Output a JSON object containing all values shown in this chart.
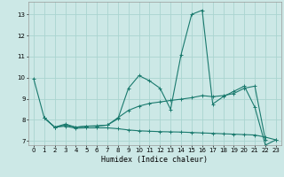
{
  "xlabel": "Humidex (Indice chaleur)",
  "bg_color": "#cce8e6",
  "line_color": "#1a7a6e",
  "grid_color": "#aad4d0",
  "xlim": [
    -0.5,
    23.5
  ],
  "ylim": [
    6.8,
    13.6
  ],
  "yticks": [
    7,
    8,
    9,
    10,
    11,
    12,
    13
  ],
  "xticks": [
    0,
    1,
    2,
    3,
    4,
    5,
    6,
    7,
    8,
    9,
    10,
    11,
    12,
    13,
    14,
    15,
    16,
    17,
    18,
    19,
    20,
    21,
    22,
    23
  ],
  "series1": [
    [
      0,
      9.95
    ],
    [
      1,
      8.1
    ],
    [
      2,
      7.65
    ],
    [
      3,
      7.8
    ],
    [
      4,
      7.65
    ],
    [
      5,
      7.7
    ],
    [
      6,
      7.7
    ],
    [
      7,
      7.75
    ],
    [
      8,
      8.05
    ],
    [
      9,
      9.5
    ],
    [
      10,
      10.1
    ],
    [
      11,
      9.85
    ],
    [
      12,
      9.5
    ],
    [
      13,
      8.5
    ],
    [
      14,
      11.1
    ],
    [
      15,
      13.0
    ],
    [
      16,
      13.2
    ],
    [
      17,
      8.75
    ],
    [
      18,
      9.1
    ],
    [
      19,
      9.35
    ],
    [
      20,
      9.6
    ],
    [
      21,
      8.6
    ],
    [
      22,
      6.8
    ],
    [
      23,
      7.05
    ]
  ],
  "series2": [
    [
      1,
      8.1
    ],
    [
      2,
      7.65
    ],
    [
      3,
      7.75
    ],
    [
      4,
      7.65
    ],
    [
      5,
      7.7
    ],
    [
      6,
      7.72
    ],
    [
      7,
      7.75
    ],
    [
      8,
      8.1
    ],
    [
      9,
      8.45
    ],
    [
      10,
      8.65
    ],
    [
      11,
      8.78
    ],
    [
      12,
      8.85
    ],
    [
      13,
      8.92
    ],
    [
      14,
      8.98
    ],
    [
      15,
      9.05
    ],
    [
      16,
      9.15
    ],
    [
      17,
      9.1
    ],
    [
      18,
      9.15
    ],
    [
      19,
      9.25
    ],
    [
      20,
      9.5
    ],
    [
      21,
      9.6
    ],
    [
      22,
      7.05
    ]
  ],
  "series3": [
    [
      1,
      8.1
    ],
    [
      2,
      7.65
    ],
    [
      3,
      7.7
    ],
    [
      4,
      7.6
    ],
    [
      5,
      7.62
    ],
    [
      6,
      7.62
    ],
    [
      7,
      7.62
    ],
    [
      8,
      7.58
    ],
    [
      9,
      7.52
    ],
    [
      10,
      7.48
    ],
    [
      11,
      7.46
    ],
    [
      12,
      7.44
    ],
    [
      13,
      7.43
    ],
    [
      14,
      7.42
    ],
    [
      15,
      7.4
    ],
    [
      16,
      7.38
    ],
    [
      17,
      7.36
    ],
    [
      18,
      7.34
    ],
    [
      19,
      7.32
    ],
    [
      20,
      7.3
    ],
    [
      21,
      7.28
    ],
    [
      22,
      7.18
    ],
    [
      23,
      7.05
    ]
  ]
}
